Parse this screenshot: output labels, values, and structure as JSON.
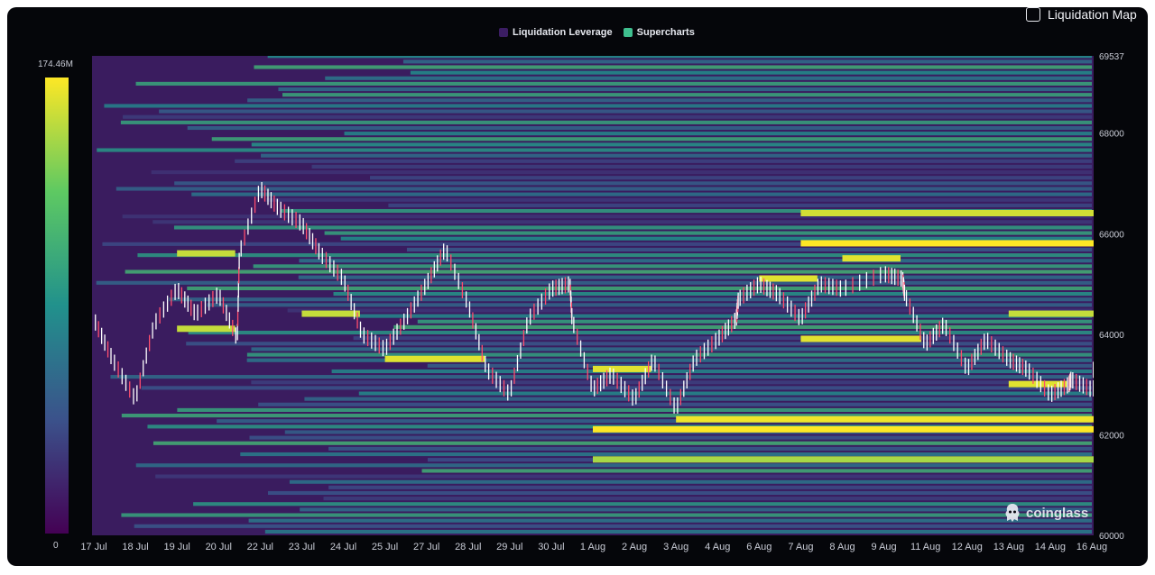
{
  "toggle": {
    "label": "Liquidation Map",
    "checked": false
  },
  "legend": [
    {
      "label": "Liquidation Leverage",
      "color": "#3b1d63"
    },
    {
      "label": "Supercharts",
      "color": "#3fbf8f"
    }
  ],
  "watermark": "coinglass",
  "colorbar": {
    "max_label": "174.46M",
    "min_label": "0"
  },
  "chart_data": {
    "type": "heatmap",
    "title": "",
    "xlabel": "",
    "ylabel": "",
    "x_ticks": [
      "17 Jul",
      "18 Jul",
      "19 Jul",
      "20 Jul",
      "22 Jul",
      "23 Jul",
      "24 Jul",
      "25 Jul",
      "27 Jul",
      "28 Jul",
      "29 Jul",
      "30 Jul",
      "1 Aug",
      "2 Aug",
      "3 Aug",
      "4 Aug",
      "6 Aug",
      "7 Aug",
      "8 Aug",
      "9 Aug",
      "11 Aug",
      "12 Aug",
      "13 Aug",
      "14 Aug",
      "16 Aug"
    ],
    "y_ticks": [
      60000,
      62000,
      64000,
      66000,
      68000,
      69537
    ],
    "ylim": [
      60000,
      69537
    ],
    "color_range": [
      0,
      174.46
    ],
    "color_unit": "M",
    "price_series": {
      "name": "Supercharts",
      "points": [
        [
          "17 Jul",
          64300
        ],
        [
          "17 Jul",
          63500
        ],
        [
          "18 Jul",
          62700
        ],
        [
          "18 Jul",
          64200
        ],
        [
          "19 Jul",
          64900
        ],
        [
          "19 Jul",
          64400
        ],
        [
          "20 Jul",
          64800
        ],
        [
          "20 Jul",
          63900
        ],
        [
          "21 Jul",
          65600
        ],
        [
          "22 Jul",
          66900
        ],
        [
          "22 Jul",
          66500
        ],
        [
          "23 Jul",
          66200
        ],
        [
          "23 Jul",
          65600
        ],
        [
          "24 Jul",
          65100
        ],
        [
          "24 Jul",
          64000
        ],
        [
          "25 Jul",
          63700
        ],
        [
          "26 Jul",
          64300
        ],
        [
          "27 Jul",
          65000
        ],
        [
          "27 Jul",
          65700
        ],
        [
          "28 Jul",
          64600
        ],
        [
          "28 Jul",
          63300
        ],
        [
          "29 Jul",
          62800
        ],
        [
          "29 Jul",
          64300
        ],
        [
          "30 Jul",
          64900
        ],
        [
          "30 Jul",
          65000
        ],
        [
          "31 Jul",
          64300
        ],
        [
          "1 Aug",
          62900
        ],
        [
          "1 Aug",
          63200
        ],
        [
          "2 Aug",
          62700
        ],
        [
          "2 Aug",
          63500
        ],
        [
          "3 Aug",
          62500
        ],
        [
          "3 Aug",
          63500
        ],
        [
          "4 Aug",
          63900
        ],
        [
          "4 Aug",
          64300
        ],
        [
          "5 Aug",
          64700
        ],
        [
          "6 Aug",
          65000
        ],
        [
          "6 Aug",
          64800
        ],
        [
          "7 Aug",
          64300
        ],
        [
          "7 Aug",
          65000
        ],
        [
          "8 Aug",
          64900
        ],
        [
          "9 Aug",
          65200
        ],
        [
          "9 Aug",
          65100
        ],
        [
          "10 Aug",
          64800
        ],
        [
          "11 Aug",
          63800
        ],
        [
          "11 Aug",
          64200
        ],
        [
          "12 Aug",
          63300
        ],
        [
          "12 Aug",
          63900
        ],
        [
          "13 Aug",
          63500
        ],
        [
          "13 Aug",
          63300
        ],
        [
          "14 Aug",
          62800
        ],
        [
          "14 Aug",
          63000
        ],
        [
          "15 Aug",
          63100
        ],
        [
          "16 Aug",
          62900
        ],
        [
          "16 Aug",
          63200
        ],
        [
          "17 Aug",
          63300
        ]
      ]
    },
    "hot_levels": [
      {
        "price": 65800,
        "from": "7 Aug",
        "to": "16 Aug",
        "intensity": 1.0
      },
      {
        "price": 66400,
        "from": "7 Aug",
        "to": "16 Aug",
        "intensity": 0.85
      },
      {
        "price": 62100,
        "from": "1 Aug",
        "to": "16 Aug",
        "intensity": 1.0
      },
      {
        "price": 62300,
        "from": "3 Aug",
        "to": "16 Aug",
        "intensity": 0.95
      },
      {
        "price": 61500,
        "from": "1 Aug",
        "to": "16 Aug",
        "intensity": 0.7
      },
      {
        "price": 63300,
        "from": "1 Aug",
        "to": "2 Aug",
        "intensity": 0.9
      },
      {
        "price": 63500,
        "from": "25 Jul",
        "to": "28 Jul",
        "intensity": 0.9
      },
      {
        "price": 63000,
        "from": "13 Aug",
        "to": "14 Aug",
        "intensity": 0.9
      },
      {
        "price": 63900,
        "from": "7 Aug",
        "to": "10 Aug",
        "intensity": 0.9
      },
      {
        "price": 65100,
        "from": "6 Aug",
        "to": "7 Aug",
        "intensity": 0.9
      },
      {
        "price": 65500,
        "from": "8 Aug",
        "to": "9 Aug",
        "intensity": 0.9
      },
      {
        "price": 64400,
        "from": "13 Aug",
        "to": "16 Aug",
        "intensity": 0.8
      },
      {
        "price": 64100,
        "from": "19 Jul",
        "to": "20 Jul",
        "intensity": 0.8
      },
      {
        "price": 65600,
        "from": "19 Jul",
        "to": "20 Jul",
        "intensity": 0.8
      },
      {
        "price": 64400,
        "from": "23 Jul",
        "to": "24 Jul",
        "intensity": 0.8
      }
    ]
  }
}
